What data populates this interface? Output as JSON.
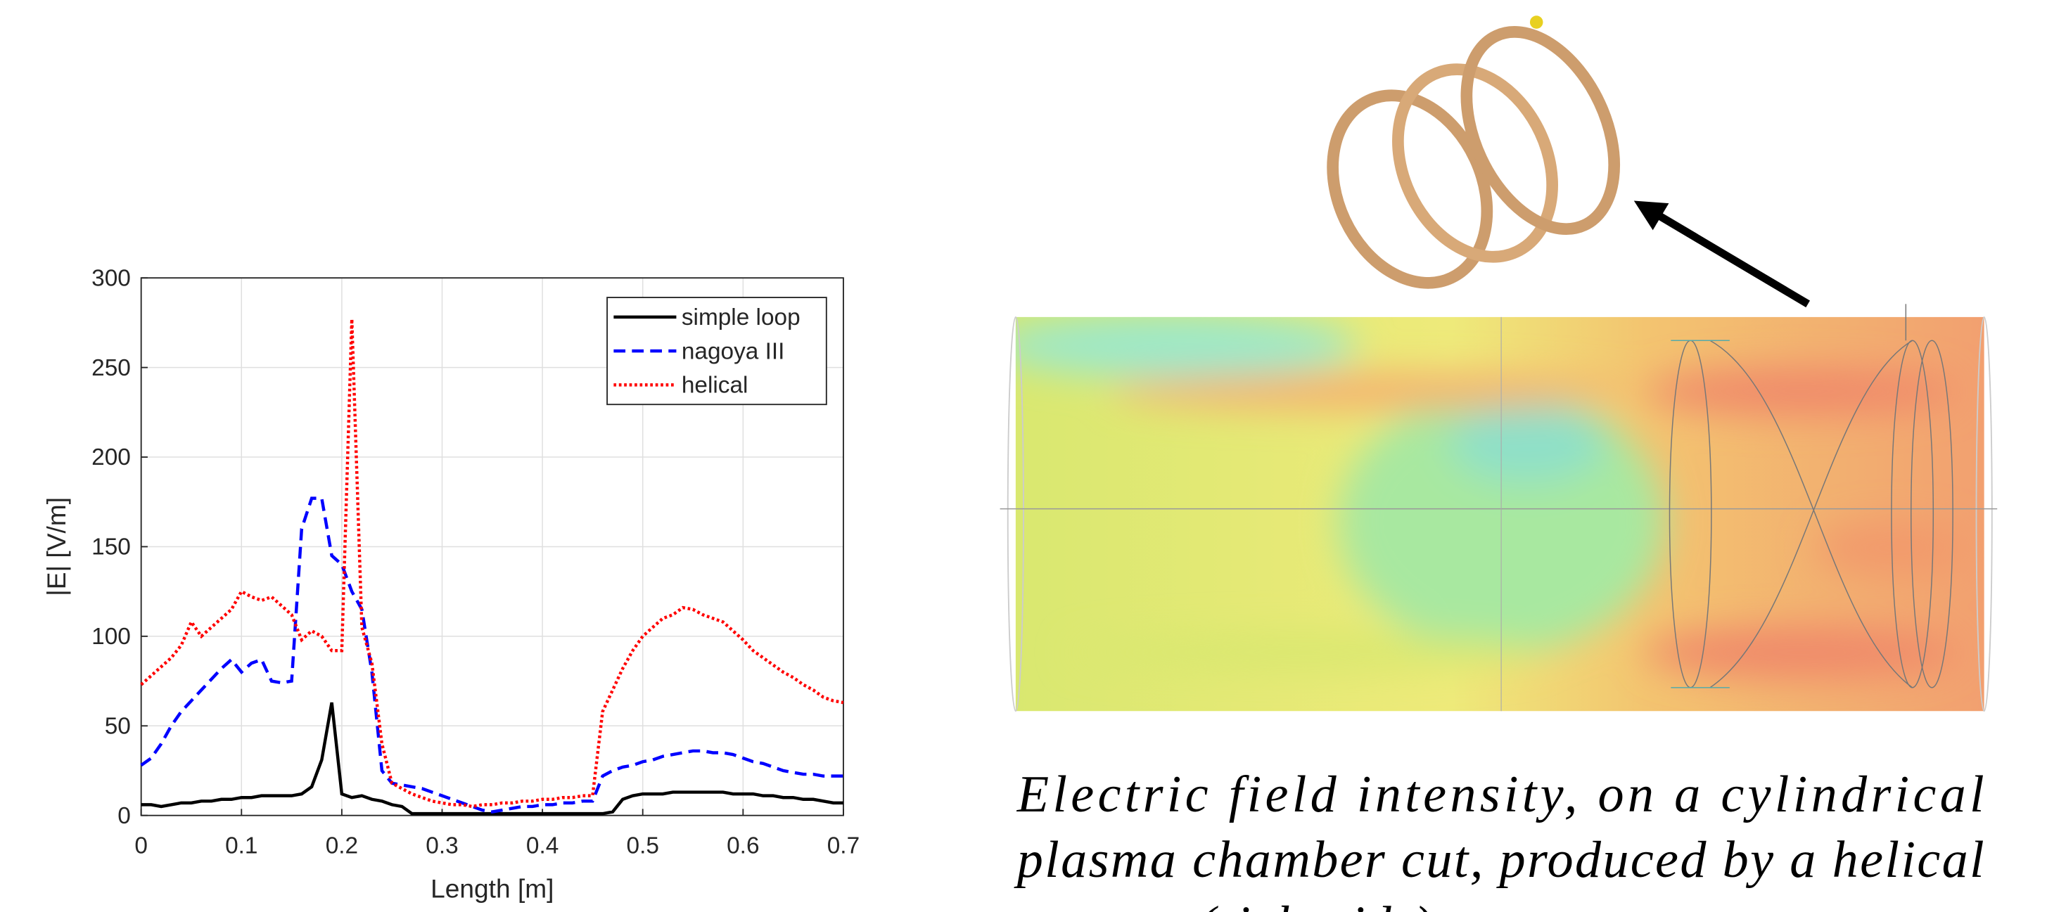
{
  "chart_data": {
    "type": "line",
    "xlabel": "Length [m]",
    "ylabel": "|E| [V/m]",
    "x": [
      0,
      0.01,
      0.02,
      0.03,
      0.04,
      0.05,
      0.06,
      0.07,
      0.08,
      0.09,
      0.1,
      0.11,
      0.12,
      0.13,
      0.14,
      0.15,
      0.16,
      0.17,
      0.18,
      0.19,
      0.2,
      0.21,
      0.22,
      0.23,
      0.24,
      0.25,
      0.26,
      0.27,
      0.28,
      0.29,
      0.3,
      0.31,
      0.32,
      0.33,
      0.34,
      0.35,
      0.36,
      0.37,
      0.38,
      0.39,
      0.4,
      0.41,
      0.42,
      0.43,
      0.44,
      0.45,
      0.46,
      0.47,
      0.48,
      0.49,
      0.5,
      0.51,
      0.52,
      0.53,
      0.54,
      0.55,
      0.56,
      0.57,
      0.58,
      0.59,
      0.6,
      0.61,
      0.62,
      0.63,
      0.64,
      0.65,
      0.66,
      0.67,
      0.68,
      0.69,
      0.7
    ],
    "series": [
      {
        "name": "simple loop",
        "color": "#000000",
        "dash": "solid",
        "values": [
          6,
          6,
          5,
          6,
          7,
          7,
          8,
          8,
          9,
          9,
          10,
          10,
          11,
          11,
          11,
          11,
          12,
          16,
          31,
          63,
          12,
          10,
          11,
          9,
          8,
          6,
          5,
          1,
          1,
          1,
          1,
          1,
          1,
          1,
          1,
          1,
          1,
          1,
          1,
          1,
          1,
          1,
          1,
          1,
          1,
          1,
          1,
          2,
          9,
          11,
          12,
          12,
          12,
          13,
          13,
          13,
          13,
          13,
          13,
          12,
          12,
          12,
          11,
          11,
          10,
          10,
          9,
          9,
          8,
          7,
          7
        ]
      },
      {
        "name": "nagoya III",
        "color": "#0000ff",
        "dash": "dashed",
        "values": [
          28,
          32,
          40,
          50,
          58,
          64,
          70,
          76,
          82,
          87,
          80,
          85,
          87,
          75,
          74,
          75,
          160,
          177,
          177,
          145,
          140,
          125,
          115,
          80,
          25,
          18,
          17,
          16,
          15,
          13,
          11,
          9,
          7,
          5,
          3,
          2,
          3,
          4,
          5,
          5,
          6,
          6,
          7,
          7,
          8,
          8,
          22,
          25,
          27,
          28,
          30,
          31,
          33,
          34,
          35,
          36,
          36,
          35,
          35,
          34,
          32,
          30,
          29,
          27,
          25,
          24,
          23,
          23,
          22,
          22,
          22
        ]
      },
      {
        "name": "helical",
        "color": "#ff0000",
        "dash": "dotted",
        "values": [
          73,
          78,
          83,
          88,
          95,
          108,
          100,
          105,
          110,
          115,
          125,
          122,
          120,
          122,
          117,
          112,
          98,
          103,
          100,
          92,
          92,
          277,
          105,
          85,
          40,
          18,
          15,
          12,
          10,
          8,
          7,
          6,
          6,
          5,
          6,
          6,
          7,
          7,
          8,
          8,
          9,
          9,
          10,
          10,
          11,
          11,
          58,
          70,
          82,
          92,
          100,
          105,
          110,
          112,
          116,
          115,
          112,
          110,
          108,
          103,
          98,
          92,
          88,
          84,
          80,
          77,
          73,
          70,
          66,
          64,
          63
        ]
      }
    ],
    "xlim": [
      0,
      0.7
    ],
    "ylim": [
      0,
      300
    ],
    "xticks": [
      0,
      0.1,
      0.2,
      0.3,
      0.4,
      0.5,
      0.6,
      0.7
    ],
    "yticks": [
      0,
      50,
      100,
      150,
      200,
      250,
      300
    ],
    "grid": true,
    "legend": "upper right"
  },
  "caption": {
    "lines": [
      "Electric field intensity, on a cylindrical",
      "plasma chamber cut, produced by a helical",
      "antenna (right side)."
    ]
  }
}
